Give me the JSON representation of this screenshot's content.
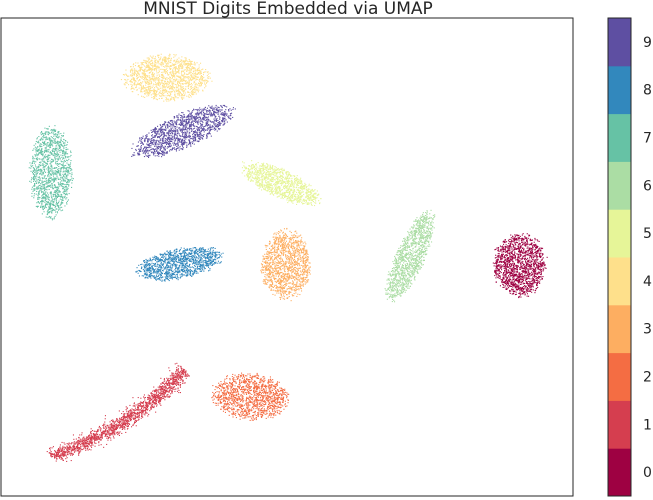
{
  "chart_data": {
    "type": "scatter",
    "title": "MNIST Digits Embedded via UMAP",
    "xlabel": "",
    "ylabel": "",
    "grid": false,
    "legend": "colorbar-right",
    "colorbar": {
      "colormap": "Spectral",
      "ticks": [
        "0",
        "1",
        "2",
        "3",
        "4",
        "5",
        "6",
        "7",
        "8",
        "9"
      ],
      "colors": [
        "#9e0142",
        "#d53e4f",
        "#f46d43",
        "#fdae61",
        "#fee08b",
        "#e6f598",
        "#abdda4",
        "#66c2a5",
        "#3288bd",
        "#5e4fa2"
      ]
    },
    "clusters": [
      {
        "label": "0",
        "color": "#9e0142",
        "center": [
          0.906,
          0.484
        ],
        "spread": [
          0.045,
          0.064
        ],
        "rotation": 0,
        "shape": "ellipse",
        "n": 1500
      },
      {
        "label": "1",
        "color": "#d53e4f",
        "center": [
          0.212,
          0.164
        ],
        "spread": [
          0.148,
          0.022
        ],
        "rotation": 38,
        "shape": "arc",
        "n": 1700
      },
      {
        "label": "2",
        "color": "#f46d43",
        "center": [
          0.435,
          0.209
        ],
        "spread": [
          0.066,
          0.047
        ],
        "rotation": -10,
        "shape": "ellipse",
        "n": 1300
      },
      {
        "label": "3",
        "color": "#fdae61",
        "center": [
          0.497,
          0.484
        ],
        "spread": [
          0.042,
          0.071
        ],
        "rotation": 0,
        "shape": "ellipse",
        "n": 1300
      },
      {
        "label": "4",
        "color": "#fee08b",
        "center": [
          0.289,
          0.876
        ],
        "spread": [
          0.073,
          0.047
        ],
        "rotation": 0,
        "shape": "ellipse",
        "n": 1400
      },
      {
        "label": "5",
        "color": "#e6f598",
        "center": [
          0.488,
          0.655
        ],
        "spread": [
          0.075,
          0.028
        ],
        "rotation": -30,
        "shape": "ellipse",
        "n": 1100
      },
      {
        "label": "6",
        "color": "#abdda4",
        "center": [
          0.715,
          0.502
        ],
        "spread": [
          0.1,
          0.025
        ],
        "rotation": 70,
        "shape": "ellipse",
        "n": 1200
      },
      {
        "label": "7",
        "color": "#66c2a5",
        "center": [
          0.087,
          0.678
        ],
        "spread": [
          0.036,
          0.093
        ],
        "rotation": 0,
        "shape": "ellipse",
        "n": 1300
      },
      {
        "label": "8",
        "color": "#3288bd",
        "center": [
          0.311,
          0.487
        ],
        "spread": [
          0.075,
          0.03
        ],
        "rotation": 14,
        "shape": "ellipse",
        "n": 1200
      },
      {
        "label": "9",
        "color": "#5e4fa2",
        "center": [
          0.316,
          0.764
        ],
        "spread": [
          0.095,
          0.033
        ],
        "rotation": 28,
        "shape": "ellipse",
        "n": 1400
      }
    ]
  }
}
